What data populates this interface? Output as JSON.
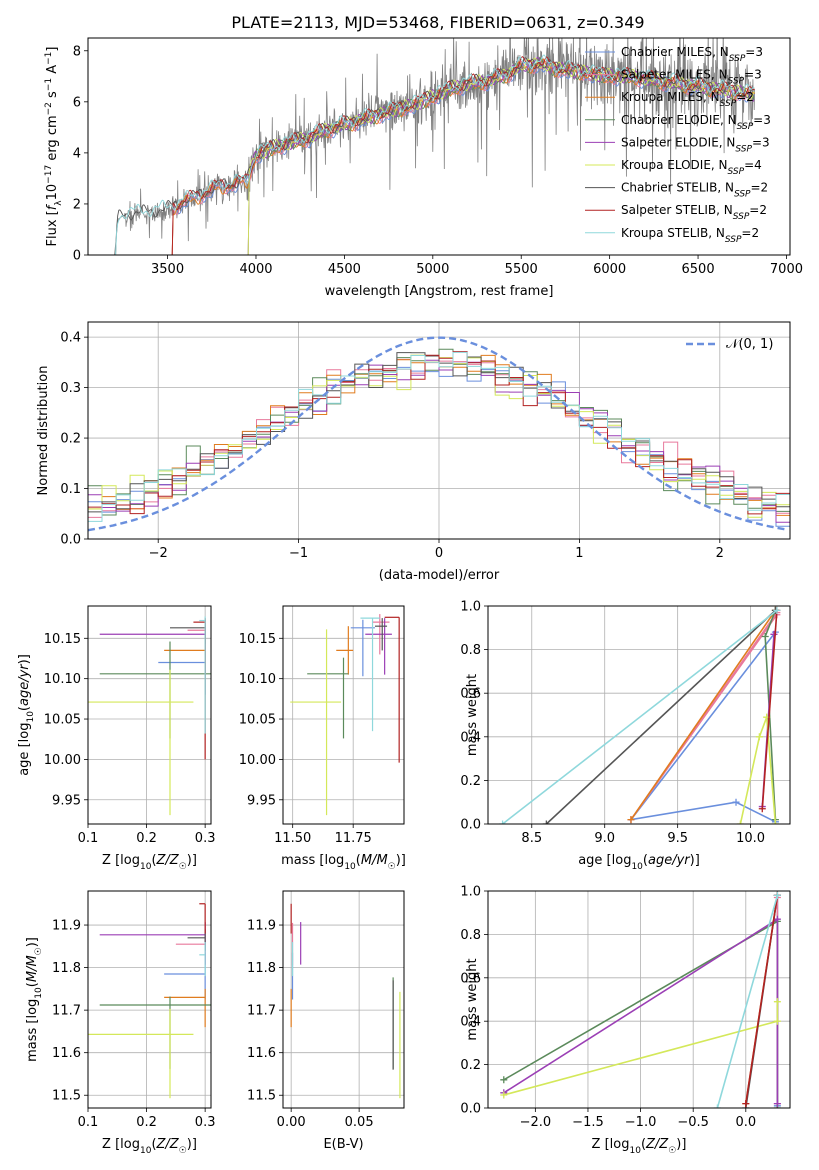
{
  "title": "PLATE=2113, MJD=53468, FIBERID=0631, z=0.349",
  "colors": {
    "Chabrier MILES": "#6a8fdd",
    "Salpeter MILES": "#e8799c",
    "Kroupa MILES": "#e07c1f",
    "Chabrier ELODIE": "#5b8a5b",
    "Salpeter ELODIE": "#9b3fb5",
    "Kroupa ELODIE": "#d4e85a",
    "Chabrier STELIB": "#555555",
    "Salpeter STELIB": "#b22222",
    "Kroupa STELIB": "#8fd8dc",
    "gaussian": "#6a8fdd",
    "data": "#808080"
  },
  "chart_data": [
    {
      "id": "spectrum",
      "type": "line",
      "title": "PLATE=2113, MJD=53468, FIBERID=0631, z=0.349",
      "xlabel": "wavelength [Angstrom, rest frame]",
      "ylabel": "Flux [f_λ 10^-17 erg cm^-2 s^-1 A^-1]",
      "xlim": [
        3050,
        7020
      ],
      "ylim": [
        0,
        8.5
      ],
      "xticks": [
        3500,
        4000,
        4500,
        5000,
        5500,
        6000,
        6500,
        7000
      ],
      "yticks": [
        0,
        2,
        4,
        6,
        8
      ],
      "legend_position": "top-right",
      "legend": [
        "Chabrier MILES, N_SSP=3",
        "Salpeter MILES, N_SSP=3",
        "Kroupa MILES, N_SSP=2",
        "Chabrier ELODIE, N_SSP=3",
        "Salpeter ELODIE, N_SSP=3",
        "Kroupa ELODIE, N_SSP=4",
        "Chabrier STELIB, N_SSP=2",
        "Salpeter STELIB, N_SSP=2",
        "Kroupa STELIB, N_SSP=2"
      ],
      "continuum": {
        "x": [
          3200,
          3220,
          3240,
          3300,
          3400,
          3500,
          3600,
          3700,
          3800,
          3900,
          3950,
          4000,
          4100,
          4200,
          4300,
          4400,
          4500,
          4600,
          4700,
          4800,
          4900,
          5000,
          5100,
          5200,
          5300,
          5400,
          5500,
          5600,
          5700,
          5800,
          5900,
          6000,
          6100,
          6200,
          6300,
          6400,
          6500,
          6600,
          6700,
          6800
        ],
        "y": [
          0,
          1.4,
          1.5,
          1.6,
          1.65,
          1.8,
          2.1,
          2.4,
          2.7,
          2.8,
          2.9,
          3.9,
          4.2,
          4.4,
          4.6,
          4.9,
          5.1,
          5.3,
          5.5,
          5.7,
          5.9,
          6.2,
          6.5,
          6.7,
          6.8,
          7.0,
          7.4,
          7.5,
          7.3,
          7.2,
          7.1,
          7.0,
          7.0,
          6.9,
          6.8,
          6.7,
          6.6,
          6.5,
          6.4,
          6.3
        ]
      },
      "model_ranges": [
        [
          3520,
          6820
        ],
        [
          3520,
          6820
        ],
        [
          3520,
          6820
        ],
        [
          3950,
          6820
        ],
        [
          3950,
          6820
        ],
        [
          3950,
          6820
        ],
        [
          3200,
          6820
        ],
        [
          3520,
          6820
        ],
        [
          3200,
          6820
        ]
      ],
      "data_range": [
        3200,
        6820
      ],
      "noise_amplitude": [
        [
          3500,
          0.6
        ],
        [
          4000,
          1.0
        ],
        [
          5000,
          1.3
        ],
        [
          5800,
          1.8
        ],
        [
          6800,
          2.2
        ]
      ]
    },
    {
      "id": "residuals",
      "type": "histogram",
      "xlabel": "(data-model)/error",
      "ylabel": "Normed distribution",
      "xlim": [
        -2.5,
        2.5
      ],
      "ylim": [
        0,
        0.43
      ],
      "xticks": [
        -2,
        -1,
        0,
        1,
        2
      ],
      "yticks": [
        0.0,
        0.1,
        0.2,
        0.3,
        0.4
      ],
      "legend": [
        "𝒩(0, 1)"
      ],
      "legend_position": "top-right",
      "bins": 50,
      "reference_curve": "standard normal"
    },
    {
      "id": "age-vs-Z",
      "type": "errorbar",
      "xlabel": "Z [log10(Z/Z☉)]",
      "ylabel": "age [log10(age/yr)]",
      "xlim": [
        0.1,
        0.31
      ],
      "ylim": [
        9.92,
        10.19
      ],
      "xticks": [
        0.1,
        0.2,
        0.3
      ],
      "yticks": [
        9.95,
        10.0,
        10.05,
        10.1,
        10.15
      ],
      "points": [
        {
          "model": "Chabrier MILES",
          "x": 0.3,
          "xerr": [
            0.08,
            0.0
          ],
          "y": 10.12,
          "yerr": [
            0.04,
            0.02
          ]
        },
        {
          "model": "Salpeter MILES",
          "x": 0.3,
          "xerr": [
            0.03,
            0.0
          ],
          "y": 10.16,
          "yerr": [
            0.04,
            0.01
          ]
        },
        {
          "model": "Kroupa MILES",
          "x": 0.3,
          "xerr": [
            0.07,
            0.0
          ],
          "y": 10.135,
          "yerr": [
            0.03,
            0.02
          ]
        },
        {
          "model": "Chabrier ELODIE",
          "x": 0.24,
          "xerr": [
            0.12,
            0.07
          ],
          "y": 10.106,
          "yerr": [
            0.08,
            0.04
          ]
        },
        {
          "model": "Salpeter ELODIE",
          "x": 0.3,
          "xerr": [
            0.18,
            0.0
          ],
          "y": 10.155,
          "yerr": [
            0.05,
            0.01
          ]
        },
        {
          "model": "Kroupa ELODIE",
          "x": 0.24,
          "xerr": [
            0.14,
            0.04
          ],
          "y": 10.071,
          "yerr": [
            0.14,
            0.04
          ]
        },
        {
          "model": "Chabrier STELIB",
          "x": 0.3,
          "xerr": [
            0.06,
            0.0
          ],
          "y": 10.163,
          "yerr": [
            0.02,
            0.01
          ]
        },
        {
          "model": "Salpeter STELIB",
          "x": 0.3,
          "xerr": [
            0.02,
            0.0
          ],
          "y": 10.17,
          "yerr": [
            0.17,
            0.005
          ]
        },
        {
          "model": "Kroupa STELIB",
          "x": 0.3,
          "xerr": [
            0.01,
            0.0
          ],
          "y": 10.172,
          "yerr": [
            0.14,
            0.005
          ]
        }
      ]
    },
    {
      "id": "age-vs-mass",
      "type": "errorbar",
      "xlabel": "mass [log10(M/M☉)]",
      "ylabel": "",
      "xlim": [
        11.46,
        11.96
      ],
      "ylim": [
        9.92,
        10.19
      ],
      "xticks": [
        11.5,
        11.75
      ],
      "yticks": [
        9.95,
        10.0,
        10.05,
        10.1,
        10.15
      ],
      "points": [
        {
          "model": "Chabrier MILES",
          "x": 11.79,
          "xerr": [
            0.05,
            0.05
          ],
          "y": 10.163,
          "yerr": [
            0.06,
            0.01
          ]
        },
        {
          "model": "Salpeter MILES",
          "x": 11.86,
          "xerr": [
            0.03,
            0.04
          ],
          "y": 10.17,
          "yerr": [
            0.04,
            0.01
          ]
        },
        {
          "model": "Kroupa MILES",
          "x": 11.73,
          "xerr": [
            0.05,
            0.02
          ],
          "y": 10.135,
          "yerr": [
            0.03,
            0.03
          ]
        },
        {
          "model": "Chabrier ELODIE",
          "x": 11.71,
          "xerr": [
            0.15,
            0.02
          ],
          "y": 10.106,
          "yerr": [
            0.08,
            0.02
          ]
        },
        {
          "model": "Salpeter ELODIE",
          "x": 11.88,
          "xerr": [
            0.08,
            0.03
          ],
          "y": 10.155,
          "yerr": [
            0.05,
            0.02
          ]
        },
        {
          "model": "Kroupa ELODIE",
          "x": 11.64,
          "xerr": [
            0.15,
            0.06
          ],
          "y": 10.071,
          "yerr": [
            0.14,
            0.09
          ]
        },
        {
          "model": "Chabrier STELIB",
          "x": 11.87,
          "xerr": [
            0.03,
            0.02
          ],
          "y": 10.165,
          "yerr": [
            0.03,
            0.01
          ]
        },
        {
          "model": "Salpeter STELIB",
          "x": 11.94,
          "xerr": [
            0.06,
            0.0
          ],
          "y": 10.176,
          "yerr": [
            0.18,
            0.0
          ]
        },
        {
          "model": "Kroupa STELIB",
          "x": 11.83,
          "xerr": [
            0.05,
            0.03
          ],
          "y": 10.175,
          "yerr": [
            0.14,
            0.0
          ]
        }
      ]
    },
    {
      "id": "massweight-vs-age",
      "type": "line",
      "xlabel": "age [log10(age/yr)]",
      "ylabel": "mass weight",
      "xlim": [
        8.2,
        10.27
      ],
      "ylim": [
        0,
        1.0
      ],
      "xticks": [
        8.5,
        9.0,
        9.5,
        10.0
      ],
      "yticks": [
        0.0,
        0.2,
        0.4,
        0.6,
        0.8,
        1.0
      ],
      "series": [
        {
          "model": "Chabrier MILES",
          "x": [
            10.17,
            9.9,
            9.18,
            10.17
          ],
          "y": [
            0.01,
            0.1,
            0.02,
            0.88
          ]
        },
        {
          "model": "Salpeter MILES",
          "x": [
            10.18,
            9.18,
            10.18
          ],
          "y": [
            0.97,
            0.02,
            0.96
          ]
        },
        {
          "model": "Kroupa MILES",
          "x": [
            10.17,
            9.18,
            10.17
          ],
          "y": [
            0.98,
            0.02,
            0.98
          ]
        },
        {
          "model": "Chabrier ELODIE",
          "x": [
            10.17,
            10.1,
            10.17
          ],
          "y": [
            0.02,
            0.86,
            0.98
          ]
        },
        {
          "model": "Salpeter ELODIE",
          "x": [
            10.16,
            10.08,
            10.16
          ],
          "y": [
            0.87,
            0.08,
            0.87
          ]
        },
        {
          "model": "Kroupa ELODIE",
          "x": [
            9.93,
            10.06,
            10.11,
            10.17
          ],
          "y": [
            0.0,
            0.4,
            0.49,
            0.0
          ]
        },
        {
          "model": "Chabrier STELIB",
          "x": [
            8.6,
            10.17
          ],
          "y": [
            0.0,
            0.98
          ]
        },
        {
          "model": "Salpeter STELIB",
          "x": [
            10.08,
            10.18
          ],
          "y": [
            0.07,
            0.98
          ]
        },
        {
          "model": "Kroupa STELIB",
          "x": [
            8.3,
            10.18
          ],
          "y": [
            0.0,
            0.98
          ]
        }
      ]
    },
    {
      "id": "mass-vs-Z",
      "type": "errorbar",
      "xlabel": "Z [log10(Z/Z☉)]",
      "ylabel": "mass [log10(M/M☉)]",
      "xlim": [
        0.1,
        0.31
      ],
      "ylim": [
        11.47,
        11.98
      ],
      "xticks": [
        0.1,
        0.2,
        0.3
      ],
      "yticks": [
        11.5,
        11.6,
        11.7,
        11.8,
        11.9
      ],
      "points": [
        {
          "model": "Chabrier MILES",
          "x": 0.3,
          "xerr": [
            0.07,
            0.0
          ],
          "y": 11.785,
          "yerr": [
            0.06,
            0.05
          ]
        },
        {
          "model": "Salpeter MILES",
          "x": 0.3,
          "xerr": [
            0.05,
            0.0
          ],
          "y": 11.855,
          "yerr": [
            0.05,
            0.05
          ]
        },
        {
          "model": "Kroupa MILES",
          "x": 0.3,
          "xerr": [
            0.07,
            0.0
          ],
          "y": 11.73,
          "yerr": [
            0.07,
            0.02
          ]
        },
        {
          "model": "Chabrier ELODIE",
          "x": 0.24,
          "xerr": [
            0.12,
            0.07
          ],
          "y": 11.712,
          "yerr": [
            0.15,
            0.02
          ]
        },
        {
          "model": "Salpeter ELODIE",
          "x": 0.3,
          "xerr": [
            0.18,
            0.0
          ],
          "y": 11.877,
          "yerr": [
            0.07,
            0.03
          ]
        },
        {
          "model": "Kroupa ELODIE",
          "x": 0.24,
          "xerr": [
            0.14,
            0.04
          ],
          "y": 11.643,
          "yerr": [
            0.15,
            0.06
          ]
        },
        {
          "model": "Chabrier STELIB",
          "x": 0.3,
          "xerr": [
            0.03,
            0.0
          ],
          "y": 11.87,
          "yerr": [
            0.03,
            0.02
          ]
        },
        {
          "model": "Salpeter STELIB",
          "x": 0.3,
          "xerr": [
            0.01,
            0.0
          ],
          "y": 11.95,
          "yerr": [
            0.07,
            0.0
          ]
        },
        {
          "model": "Kroupa STELIB",
          "x": 0.3,
          "xerr": [
            0.01,
            0.0
          ],
          "y": 11.83,
          "yerr": [
            0.05,
            0.03
          ]
        }
      ]
    },
    {
      "id": "mass-vs-ebv",
      "type": "errorbar",
      "xlabel": "E(B-V)",
      "ylabel": "",
      "xlim": [
        -0.006,
        0.083
      ],
      "ylim": [
        11.47,
        11.98
      ],
      "xticks": [
        0.0,
        0.05
      ],
      "yticks": [
        11.5,
        11.6,
        11.7,
        11.8,
        11.9
      ],
      "points": [
        {
          "model": "Chabrier MILES",
          "x": 0.001,
          "xerr": [
            0.0,
            0.0
          ],
          "y": 11.785,
          "yerr": [
            0.06,
            0.05
          ]
        },
        {
          "model": "Salpeter MILES",
          "x": 0.001,
          "xerr": [
            0.0,
            0.0
          ],
          "y": 11.855,
          "yerr": [
            0.05,
            0.05
          ]
        },
        {
          "model": "Kroupa MILES",
          "x": 0.0,
          "xerr": [
            0.0,
            0.0
          ],
          "y": 11.73,
          "yerr": [
            0.07,
            0.02
          ]
        },
        {
          "model": "Chabrier ELODIE",
          "x": 0.075,
          "xerr": [
            0.0,
            0.0
          ],
          "y": 11.712,
          "yerr": [
            0.15,
            0.065
          ]
        },
        {
          "model": "Salpeter ELODIE",
          "x": 0.007,
          "xerr": [
            0.0,
            0.0
          ],
          "y": 11.877,
          "yerr": [
            0.07,
            0.03
          ]
        },
        {
          "model": "Kroupa ELODIE",
          "x": 0.08,
          "xerr": [
            0.0,
            0.0
          ],
          "y": 11.643,
          "yerr": [
            0.15,
            0.1
          ]
        },
        {
          "model": "Chabrier STELIB",
          "x": 0.075,
          "xerr": [
            0.0,
            0.0
          ],
          "y": 11.71,
          "yerr": [
            0.15,
            0.06
          ]
        },
        {
          "model": "Salpeter STELIB",
          "x": 0.0,
          "xerr": [
            0.0,
            0.0
          ],
          "y": 11.95,
          "yerr": [
            0.07,
            0.0
          ]
        },
        {
          "model": "Kroupa STELIB",
          "x": 0.001,
          "xerr": [
            0.0,
            0.0
          ],
          "y": 11.83,
          "yerr": [
            0.05,
            0.03
          ]
        }
      ]
    },
    {
      "id": "massweight-vs-Z",
      "type": "line",
      "xlabel": "Z [log10(Z/Z☉)]",
      "ylabel": "mass weight",
      "xlim": [
        -2.45,
        0.42
      ],
      "ylim": [
        0,
        1.0
      ],
      "xticks": [
        -2.0,
        -1.5,
        -1.0,
        -0.5,
        0.0
      ],
      "yticks": [
        0.0,
        0.2,
        0.4,
        0.6,
        0.8,
        1.0
      ],
      "series": [
        {
          "model": "Chabrier MILES",
          "x": [
            0.3,
            0.3
          ],
          "y": [
            0.01,
            0.98
          ]
        },
        {
          "model": "Salpeter MILES",
          "x": [
            0.3,
            0.3
          ],
          "y": [
            0.02,
            0.97
          ]
        },
        {
          "model": "Kroupa MILES",
          "x": [
            0.0,
            0.3
          ],
          "y": [
            0.02,
            0.98
          ]
        },
        {
          "model": "Chabrier ELODIE",
          "x": [
            -2.3,
            0.3,
            0.3
          ],
          "y": [
            0.13,
            0.86,
            0.0
          ]
        },
        {
          "model": "Salpeter ELODIE",
          "x": [
            -2.3,
            0.3,
            0.3
          ],
          "y": [
            0.07,
            0.87,
            0.02
          ]
        },
        {
          "model": "Kroupa ELODIE",
          "x": [
            -2.3,
            0.3,
            0.3
          ],
          "y": [
            0.06,
            0.4,
            0.49
          ]
        },
        {
          "model": "Chabrier STELIB",
          "x": [
            0.0,
            0.3
          ],
          "y": [
            0.0,
            0.98
          ]
        },
        {
          "model": "Salpeter STELIB",
          "x": [
            0.0,
            0.3
          ],
          "y": [
            0.02,
            0.98
          ]
        },
        {
          "model": "Kroupa STELIB",
          "x": [
            -0.27,
            0.3
          ],
          "y": [
            0.0,
            0.98
          ]
        }
      ]
    }
  ]
}
